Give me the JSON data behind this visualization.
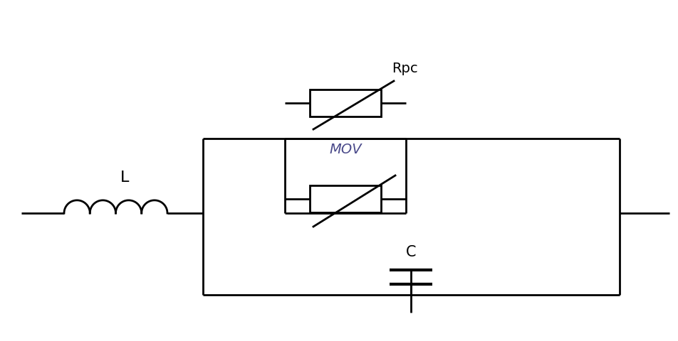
{
  "bg_color": "#ffffff",
  "line_color": "#000000",
  "line_width": 2.0,
  "label_L": "L",
  "label_Rpc": "Rpc",
  "label_MOV": "MOV",
  "label_C": "C",
  "fig_width": 9.52,
  "fig_height": 4.8,
  "dpi": 100
}
